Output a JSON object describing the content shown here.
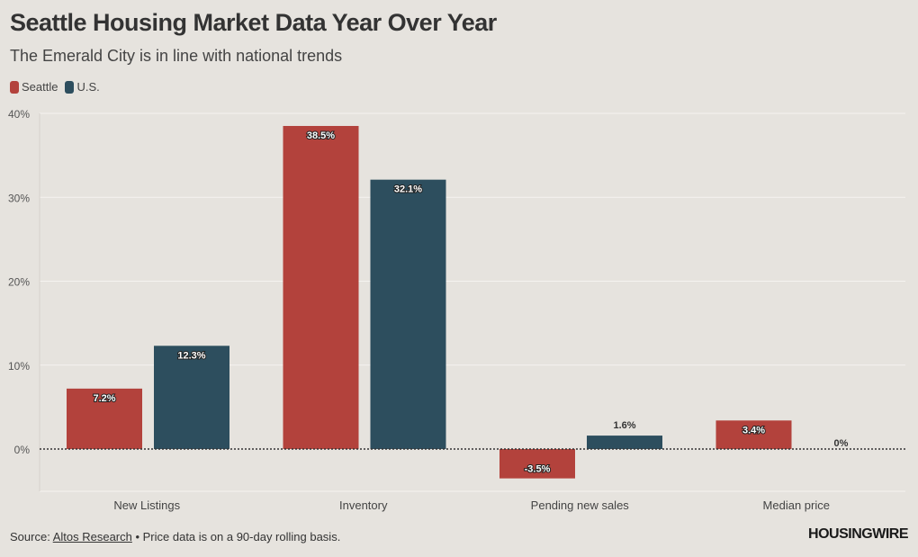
{
  "header": {
    "title": "Seattle Housing Market Data Year Over Year",
    "subtitle": "The Emerald City is in line with national trends"
  },
  "colors": {
    "seattle": "#b3423c",
    "us": "#2d4e5e",
    "grid": "#f3f1ee",
    "text": "#444444"
  },
  "chart_data": {
    "type": "bar",
    "title": "Seattle Housing Market Data Year Over Year",
    "subtitle": "The Emerald City is in line with national trends",
    "categories": [
      "New Listings",
      "Inventory",
      "Pending new sales",
      "Median price"
    ],
    "series": [
      {
        "name": "Seattle",
        "values": [
          7.2,
          38.5,
          -3.5,
          3.4
        ],
        "labels": [
          "7.2%",
          "38.5%",
          "-3.5%",
          "3.4%"
        ]
      },
      {
        "name": "U.S.",
        "values": [
          12.3,
          32.1,
          1.6,
          0
        ],
        "labels": [
          "12.3%",
          "32.1%",
          "1.6%",
          "0%"
        ]
      }
    ],
    "ylim": [
      -5,
      40
    ],
    "yticks": [
      0,
      10,
      20,
      30,
      40
    ],
    "ytick_labels": [
      "0%",
      "10%",
      "20%",
      "30%",
      "40%"
    ],
    "xlabel": "",
    "ylabel": "",
    "legend": "top-left",
    "grid": true
  },
  "footer": {
    "source_prefix": "Source: ",
    "source_link": "Altos Research",
    "source_note": " • Price data is on a 90-day rolling basis.",
    "logo": "HOUSINGWIRE"
  }
}
